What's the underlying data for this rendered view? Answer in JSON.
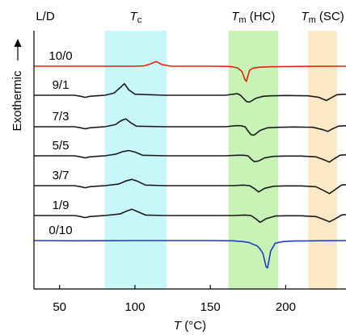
{
  "chart_data": {
    "type": "line",
    "title": "",
    "xlabel": "T (°C)",
    "xlabel_main": "T",
    "xlabel_unit": " (°C)",
    "ylabel": "Exothermic",
    "xlim": [
      33,
      240
    ],
    "xticks": [
      50,
      100,
      150,
      200
    ],
    "xtick_labels": [
      "50",
      "100",
      "150",
      "200"
    ],
    "column_header": "L/D",
    "regions": [
      {
        "main": "T",
        "sub": "c",
        "rest": "",
        "range": [
          80,
          121
        ],
        "color": "#c8f7fa"
      },
      {
        "main": "T",
        "sub": "m",
        "rest": " (HC)",
        "range": [
          162,
          195
        ],
        "color": "#c8f2b6"
      },
      {
        "main": "T",
        "sub": "m",
        "rest": " (SC)",
        "range": [
          215,
          234
        ],
        "color": "#fbe9c6"
      }
    ],
    "series": [
      {
        "name": "10/0",
        "color": "#e8220f",
        "x": [
          33,
          60,
          100,
          106,
          110,
          114,
          118,
          124,
          150,
          163,
          168,
          171,
          172,
          173,
          174,
          175,
          176,
          178,
          182,
          190,
          200,
          215,
          240
        ],
        "y": [
          0,
          0,
          0,
          0.6,
          4,
          9,
          3,
          0,
          0,
          -0.5,
          -3,
          -10,
          -18,
          -26,
          -29,
          -18,
          -8,
          -4,
          -2,
          -1,
          -0.6,
          -0.3,
          0
        ]
      },
      {
        "name": "9/1",
        "color": "#1a1a1a",
        "x": [
          33,
          60,
          64,
          67,
          70,
          80,
          86,
          90,
          93,
          96,
          100,
          120,
          150,
          160,
          165,
          168,
          170,
          172,
          174,
          176,
          180,
          185,
          190,
          200,
          215,
          222,
          227,
          230,
          234,
          240
        ],
        "y": [
          0,
          0,
          -2,
          -4,
          -2,
          0,
          4,
          14,
          22,
          10,
          2,
          0,
          0,
          0,
          2,
          3,
          0,
          -6,
          -12,
          -13,
          -6,
          -2,
          -1,
          -0.5,
          -1,
          -4,
          -10,
          -5,
          1,
          2
        ]
      },
      {
        "name": "7/3",
        "color": "#1a1a1a",
        "x": [
          33,
          60,
          64,
          67,
          70,
          80,
          87,
          91,
          94,
          97,
          101,
          120,
          150,
          160,
          167,
          170,
          173,
          175,
          177,
          179,
          183,
          188,
          195,
          205,
          218,
          224,
          228,
          231,
          235,
          240
        ],
        "y": [
          0,
          0,
          -2,
          -4,
          -2,
          0,
          4,
          12,
          15,
          8,
          1,
          0,
          0,
          0,
          2,
          2,
          0,
          -8,
          -15,
          -16,
          -7,
          -2,
          -1,
          -0.5,
          -1,
          -5,
          -9,
          -4,
          1,
          2
        ]
      },
      {
        "name": "5/5",
        "color": "#1a1a1a",
        "x": [
          33,
          60,
          64,
          67,
          70,
          80,
          87,
          92,
          96,
          100,
          105,
          120,
          150,
          160,
          168,
          172,
          175,
          177,
          179,
          182,
          186,
          192,
          200,
          210,
          220,
          225,
          229,
          232,
          236,
          240
        ],
        "y": [
          0,
          0,
          -2,
          -4,
          -2,
          0,
          3,
          8,
          10,
          7,
          1,
          0,
          0,
          0,
          1,
          1,
          0,
          -6,
          -11,
          -10,
          -4,
          -1,
          -0.5,
          -0.5,
          -2,
          -7,
          -12,
          -6,
          1,
          2
        ]
      },
      {
        "name": "3/7",
        "color": "#1a1a1a",
        "x": [
          33,
          60,
          64,
          67,
          70,
          80,
          89,
          94,
          98,
          102,
          107,
          120,
          150,
          165,
          172,
          176,
          179,
          182,
          186,
          192,
          200,
          210,
          220,
          225,
          229,
          233,
          237,
          240
        ],
        "y": [
          0,
          0,
          -2,
          -4,
          -2,
          0,
          3,
          9,
          12,
          8,
          1,
          0,
          0,
          0,
          1,
          0,
          -5,
          -12,
          -5,
          -1,
          -0.5,
          -0.5,
          -2,
          -9,
          -15,
          -7,
          1,
          2
        ]
      },
      {
        "name": "1/9",
        "color": "#1a1a1a",
        "x": [
          33,
          60,
          64,
          67,
          70,
          80,
          90,
          95,
          98,
          102,
          107,
          120,
          150,
          165,
          173,
          177,
          180,
          183,
          187,
          193,
          200,
          210,
          220,
          225,
          229,
          233,
          237,
          240
        ],
        "y": [
          0,
          0,
          -2,
          -4,
          -2,
          0,
          3,
          9,
          12,
          7,
          1,
          0,
          0,
          0,
          1,
          0,
          -6,
          -13,
          -6,
          -1,
          -0.5,
          -0.5,
          -2,
          -7,
          -12,
          -6,
          1,
          2
        ]
      },
      {
        "name": "0/10",
        "color": "#1f3fc4",
        "x": [
          33,
          60,
          100,
          150,
          165,
          172,
          176,
          179,
          181,
          183,
          185,
          186,
          187,
          188,
          190,
          193,
          198,
          205,
          220,
          240
        ],
        "y": [
          0,
          -0.5,
          0,
          0,
          -0.5,
          -2,
          -4,
          -8,
          -10,
          -16,
          -25,
          -38,
          -50,
          -52,
          -20,
          -5,
          -2,
          -1,
          -0.5,
          0
        ]
      }
    ]
  }
}
